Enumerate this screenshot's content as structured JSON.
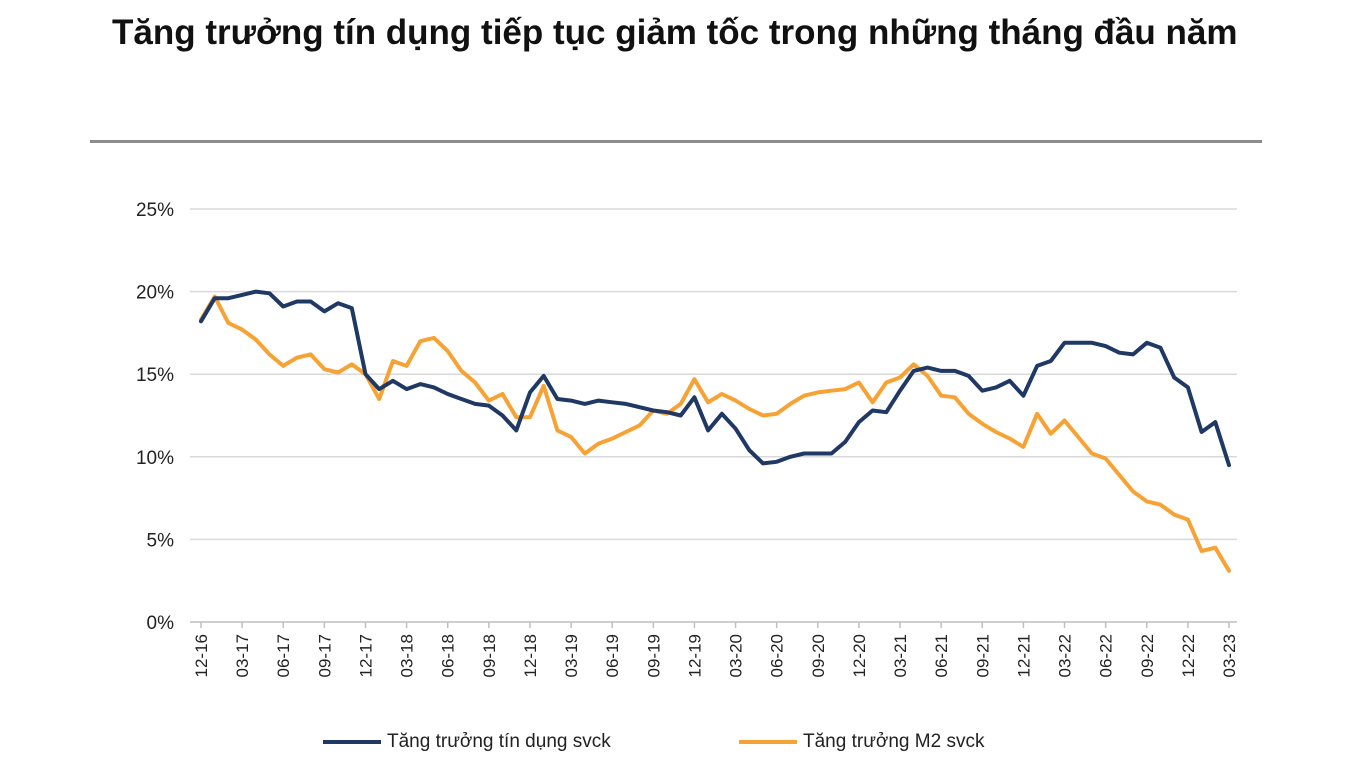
{
  "title": "Tăng trưởng tín dụng tiếp tục giảm tốc trong những tháng đầu năm",
  "chart_data": {
    "type": "line",
    "title": "Tăng trưởng tín dụng tiếp tục giảm tốc trong những tháng đầu năm",
    "xlabel": "",
    "ylabel": "",
    "ylim": [
      0,
      25
    ],
    "y_ticks": [
      "0%",
      "5%",
      "10%",
      "15%",
      "20%",
      "25%"
    ],
    "x_tick_labels": [
      "12-16",
      "03-17",
      "06-17",
      "09-17",
      "12-17",
      "03-18",
      "06-18",
      "09-18",
      "12-18",
      "03-19",
      "06-19",
      "09-19",
      "12-19",
      "03-20",
      "06-20",
      "09-20",
      "12-20",
      "03-21",
      "06-21",
      "09-21",
      "12-21",
      "03-22",
      "06-22",
      "09-22",
      "12-22",
      "03-23"
    ],
    "grid": "horizontal",
    "legend_position": "bottom",
    "series": [
      {
        "name": "Tăng trưởng tín dụng svck",
        "color": "#1f3864",
        "values": [
          18.2,
          19.6,
          19.6,
          19.8,
          20.0,
          19.9,
          19.1,
          19.4,
          19.4,
          18.8,
          19.3,
          19.0,
          15.0,
          14.1,
          14.6,
          14.1,
          14.4,
          14.2,
          13.8,
          13.5,
          13.2,
          13.1,
          12.5,
          11.6,
          13.9,
          14.9,
          13.5,
          13.4,
          13.2,
          13.4,
          13.3,
          13.2,
          13.0,
          12.8,
          12.7,
          12.5,
          13.6,
          11.6,
          12.6,
          11.7,
          10.4,
          9.6,
          9.7,
          10.0,
          10.2,
          10.2,
          10.2,
          10.9,
          12.1,
          12.8,
          12.7,
          14.0,
          15.2,
          15.4,
          15.2,
          15.2,
          14.9,
          14.0,
          14.2,
          14.6,
          13.7,
          15.5,
          15.8,
          16.9,
          16.9,
          16.9,
          16.7,
          16.3,
          16.2,
          16.9,
          16.6,
          14.8,
          14.2,
          11.5,
          12.1,
          9.5
        ]
      },
      {
        "name": "Tăng trưởng M2 svck",
        "color": "#f7a234",
        "values": [
          18.3,
          19.7,
          18.1,
          17.7,
          17.1,
          16.2,
          15.5,
          16.0,
          16.2,
          15.3,
          15.1,
          15.6,
          15.0,
          13.5,
          15.8,
          15.5,
          17.0,
          17.2,
          16.4,
          15.2,
          14.5,
          13.4,
          13.8,
          12.4,
          12.4,
          14.3,
          11.6,
          11.2,
          10.2,
          10.8,
          11.1,
          11.5,
          11.9,
          12.8,
          12.6,
          13.2,
          14.7,
          13.3,
          13.8,
          13.4,
          12.9,
          12.5,
          12.6,
          13.2,
          13.7,
          13.9,
          14.0,
          14.1,
          14.5,
          13.3,
          14.5,
          14.8,
          15.6,
          14.9,
          13.7,
          13.6,
          12.6,
          12.0,
          11.5,
          11.1,
          10.6,
          12.6,
          11.4,
          12.2,
          11.2,
          10.2,
          9.9,
          8.9,
          7.9,
          7.3,
          7.1,
          6.5,
          6.2,
          4.3,
          4.5,
          3.1
        ]
      }
    ]
  }
}
